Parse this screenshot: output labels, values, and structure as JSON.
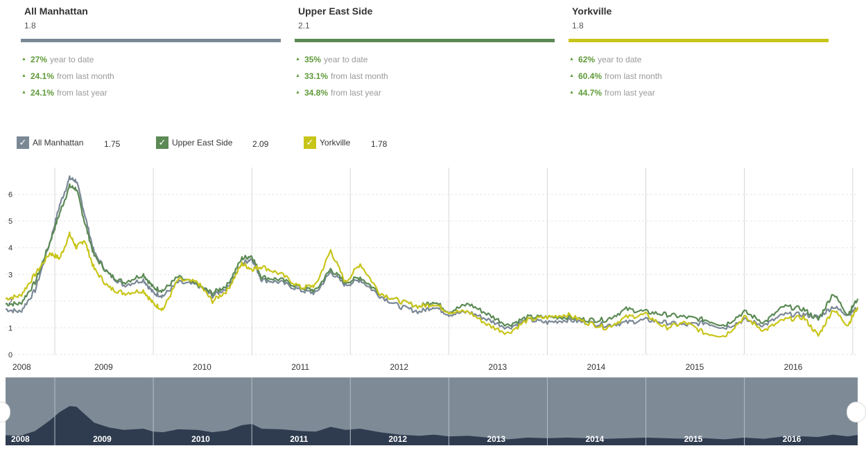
{
  "cards": [
    {
      "title": "All Manhattan",
      "value": "1.8",
      "color": "#7a8896",
      "stats": [
        {
          "pct": "27%",
          "label": "year to date"
        },
        {
          "pct": "24.1%",
          "label": "from last month"
        },
        {
          "pct": "24.1%",
          "label": "from last year"
        }
      ]
    },
    {
      "title": "Upper East Side",
      "value": "2.1",
      "color": "#5b8a54",
      "stats": [
        {
          "pct": "35%",
          "label": "year to date"
        },
        {
          "pct": "33.1%",
          "label": "from last month"
        },
        {
          "pct": "34.8%",
          "label": "from last year"
        }
      ]
    },
    {
      "title": "Yorkville",
      "value": "1.8",
      "color": "#c8c51a",
      "stats": [
        {
          "pct": "62%",
          "label": "year to date"
        },
        {
          "pct": "60.4%",
          "label": "from last month"
        },
        {
          "pct": "44.7%",
          "label": "from last year"
        }
      ]
    }
  ],
  "legend": [
    {
      "name": "All Manhattan",
      "value": "1.75",
      "color": "#7a8896",
      "icon": "check-icon"
    },
    {
      "name": "Upper East Side",
      "value": "2.09",
      "color": "#5b8a54",
      "icon": "check-icon"
    },
    {
      "name": "Yorkville",
      "value": "1.78",
      "color": "#c8c51a",
      "icon": "check-icon"
    }
  ],
  "chart_data": {
    "type": "line",
    "title": "",
    "xlabel": "",
    "ylabel": "",
    "xlim": [
      2008.0,
      2016.65
    ],
    "ylim": [
      0,
      7
    ],
    "yticks": [
      "0",
      "1",
      "2",
      "3",
      "4",
      "5",
      "6"
    ],
    "xticks": [
      "2008",
      "2009",
      "2010",
      "2011",
      "2012",
      "2013",
      "2014",
      "2015",
      "2016"
    ],
    "grid": true,
    "legend_placement": "top-left",
    "series": [
      {
        "name": "All Manhattan",
        "color": "#7a8896",
        "x": [
          2008.0,
          2008.15,
          2008.3,
          2008.45,
          2008.55,
          2008.65,
          2008.72,
          2008.8,
          2008.9,
          2009.05,
          2009.2,
          2009.4,
          2009.5,
          2009.6,
          2009.75,
          2009.95,
          2010.1,
          2010.25,
          2010.4,
          2010.5,
          2010.6,
          2010.8,
          2011.0,
          2011.15,
          2011.3,
          2011.45,
          2011.6,
          2011.8,
          2012.0,
          2012.2,
          2012.35,
          2012.5,
          2012.7,
          2012.9,
          2013.1,
          2013.3,
          2013.5,
          2013.7,
          2013.9,
          2014.1,
          2014.3,
          2014.5,
          2014.7,
          2014.9,
          2015.1,
          2015.3,
          2015.5,
          2015.7,
          2015.9,
          2016.1,
          2016.25,
          2016.4,
          2016.55,
          2016.65
        ],
        "y": [
          1.7,
          1.6,
          2.4,
          4.2,
          5.6,
          6.6,
          6.5,
          5.3,
          3.8,
          3.0,
          2.6,
          2.8,
          2.3,
          2.2,
          2.7,
          2.6,
          2.2,
          2.5,
          3.4,
          3.6,
          2.8,
          2.7,
          2.4,
          2.3,
          3.1,
          2.6,
          2.8,
          2.2,
          1.8,
          1.6,
          1.8,
          1.5,
          1.6,
          1.3,
          1.0,
          1.3,
          1.2,
          1.3,
          1.2,
          1.1,
          1.2,
          1.3,
          1.2,
          1.1,
          1.2,
          1.0,
          1.3,
          1.1,
          1.5,
          1.5,
          1.4,
          1.8,
          1.5,
          1.75
        ]
      },
      {
        "name": "Upper East Side",
        "color": "#5b8a54",
        "x": [
          2008.0,
          2008.15,
          2008.3,
          2008.45,
          2008.55,
          2008.65,
          2008.72,
          2008.8,
          2008.9,
          2009.05,
          2009.2,
          2009.4,
          2009.5,
          2009.6,
          2009.75,
          2009.95,
          2010.1,
          2010.25,
          2010.4,
          2010.5,
          2010.6,
          2010.8,
          2011.0,
          2011.15,
          2011.3,
          2011.45,
          2011.6,
          2011.8,
          2012.0,
          2012.2,
          2012.35,
          2012.5,
          2012.7,
          2012.9,
          2013.1,
          2013.3,
          2013.5,
          2013.7,
          2013.9,
          2014.1,
          2014.3,
          2014.5,
          2014.7,
          2014.9,
          2015.1,
          2015.3,
          2015.5,
          2015.7,
          2015.9,
          2016.1,
          2016.25,
          2016.4,
          2016.55,
          2016.65
        ],
        "y": [
          1.9,
          1.9,
          2.7,
          4.2,
          5.3,
          6.3,
          6.2,
          5.0,
          3.7,
          3.0,
          2.7,
          3.0,
          2.5,
          2.4,
          2.9,
          2.6,
          2.3,
          2.6,
          3.6,
          3.7,
          2.9,
          2.8,
          2.5,
          2.4,
          3.2,
          2.7,
          2.9,
          2.3,
          2.0,
          1.8,
          2.0,
          1.6,
          1.9,
          1.5,
          1.1,
          1.4,
          1.4,
          1.4,
          1.3,
          1.3,
          1.7,
          1.6,
          1.5,
          1.4,
          1.3,
          1.1,
          1.6,
          1.2,
          1.8,
          1.7,
          1.3,
          2.3,
          1.5,
          2.09
        ]
      },
      {
        "name": "Yorkville",
        "color": "#c8c51a",
        "x": [
          2008.0,
          2008.15,
          2008.3,
          2008.45,
          2008.55,
          2008.65,
          2008.72,
          2008.8,
          2008.9,
          2009.05,
          2009.2,
          2009.4,
          2009.5,
          2009.6,
          2009.75,
          2009.95,
          2010.1,
          2010.25,
          2010.4,
          2010.5,
          2010.6,
          2010.8,
          2011.0,
          2011.15,
          2011.3,
          2011.45,
          2011.6,
          2011.8,
          2012.0,
          2012.2,
          2012.35,
          2012.5,
          2012.7,
          2012.9,
          2013.1,
          2013.3,
          2013.5,
          2013.7,
          2013.9,
          2014.1,
          2014.3,
          2014.5,
          2014.7,
          2014.9,
          2015.1,
          2015.3,
          2015.5,
          2015.7,
          2015.9,
          2016.1,
          2016.25,
          2016.4,
          2016.55,
          2016.65
        ],
        "y": [
          2.1,
          2.2,
          3.0,
          3.8,
          3.6,
          4.5,
          4.0,
          4.3,
          3.2,
          2.5,
          2.3,
          2.4,
          1.9,
          1.7,
          2.8,
          2.7,
          2.0,
          2.4,
          3.4,
          3.2,
          3.3,
          3.0,
          2.5,
          2.6,
          3.9,
          2.7,
          3.4,
          2.3,
          2.0,
          1.8,
          1.9,
          1.6,
          1.6,
          1.1,
          0.8,
          1.3,
          1.4,
          1.5,
          1.2,
          1.0,
          1.4,
          1.5,
          1.0,
          1.2,
          0.8,
          0.7,
          1.4,
          0.9,
          1.3,
          1.4,
          0.7,
          1.7,
          1.1,
          1.78
        ]
      }
    ]
  },
  "navigator": {
    "labels": [
      "2008",
      "2009",
      "2010",
      "2011",
      "2012",
      "2013",
      "2014",
      "2015",
      "2016"
    ]
  }
}
